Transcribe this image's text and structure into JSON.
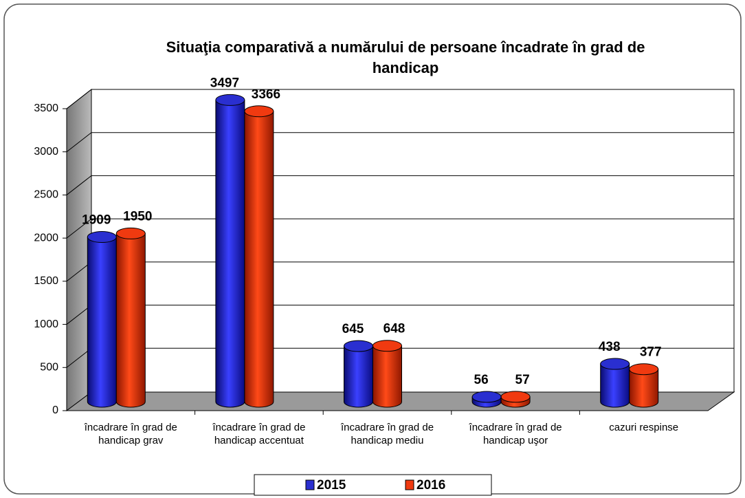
{
  "chart_data": {
    "type": "bar3d",
    "title": "Situaţia comparativă a numărului de persoane încadrate în grad de handicap",
    "categories": [
      "încadrare în grad de handicap grav",
      "încadrare în grad de handicap accentuat",
      "încadrare în grad de handicap mediu",
      "încadrare în grad de handicap uşor",
      "cazuri respinse"
    ],
    "series": [
      {
        "name": "2015",
        "color": "#2a2fd0",
        "values": [
          1909,
          3497,
          645,
          56,
          438
        ]
      },
      {
        "name": "2016",
        "color": "#f03a10",
        "values": [
          1950,
          3366,
          648,
          57,
          377
        ]
      }
    ],
    "ylim": [
      0,
      3500
    ],
    "yticks": [
      0,
      500,
      1000,
      1500,
      2000,
      2500,
      3000,
      3500
    ],
    "grid": true,
    "legend": "bottom"
  }
}
